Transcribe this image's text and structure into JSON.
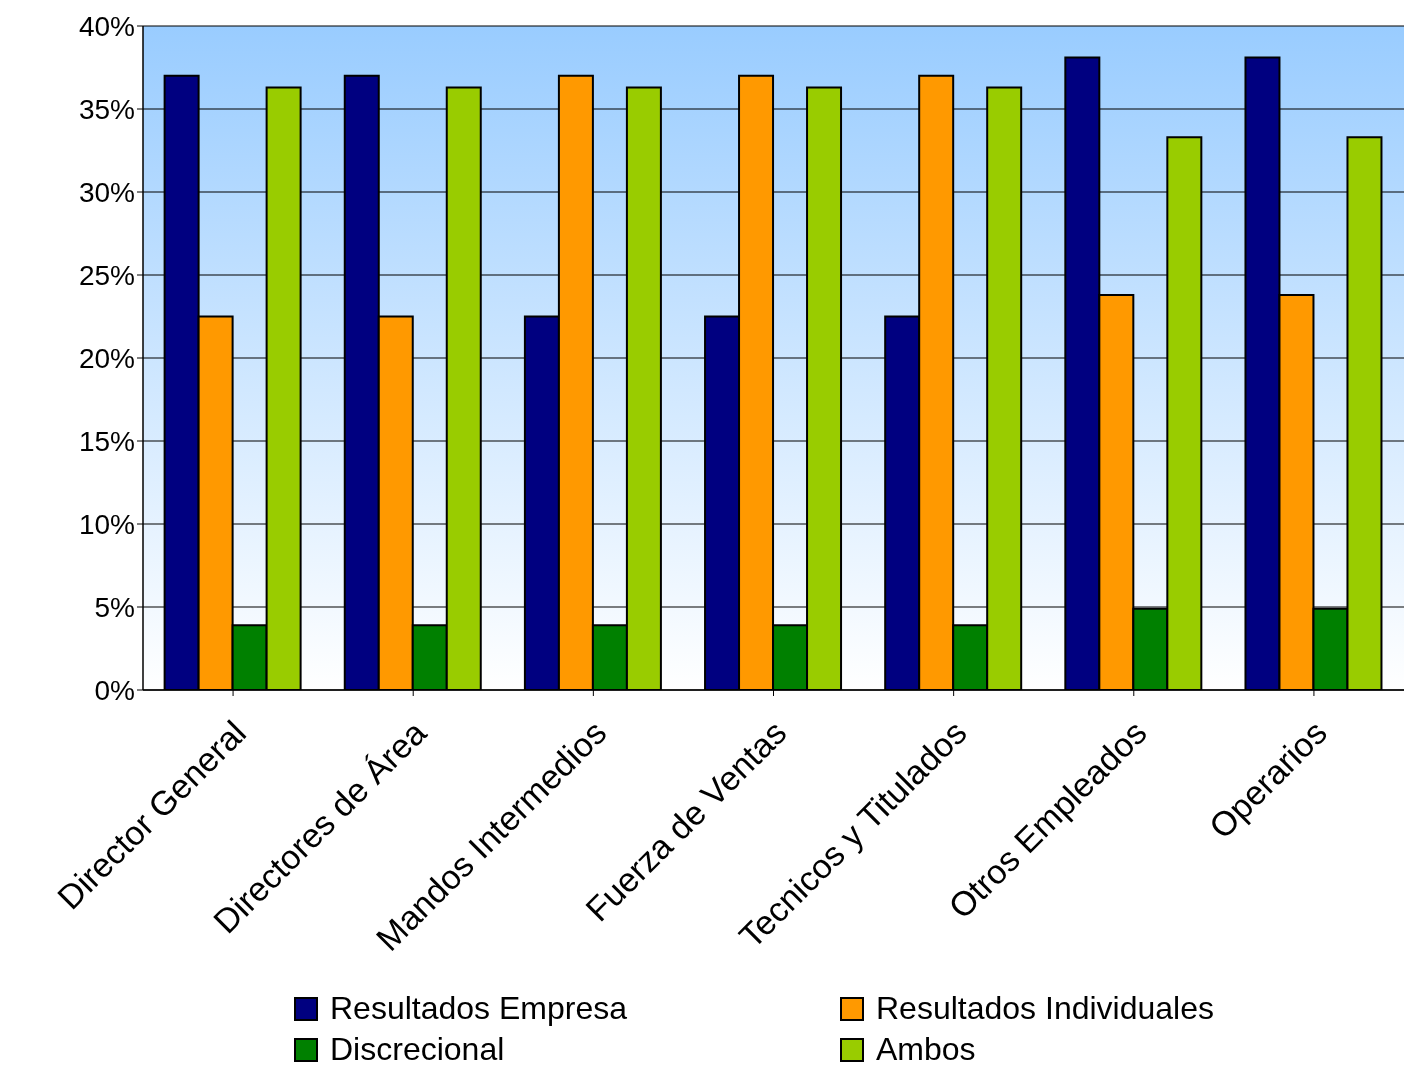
{
  "chart_data": {
    "type": "bar",
    "categories": [
      "Director General",
      "Directores de Área",
      "Mandos Intermedios",
      "Fuerza de Ventas",
      "Tecnicos y Titulados",
      "Otros Empleados",
      "Operarios"
    ],
    "series": [
      {
        "name": "Resultados Empresa",
        "color": "#000080",
        "values": [
          37.0,
          37.0,
          22.5,
          22.5,
          22.5,
          38.1,
          38.1
        ]
      },
      {
        "name": "Resultados Individuales",
        "color": "#ff9900",
        "values": [
          22.5,
          22.5,
          37.0,
          37.0,
          37.0,
          23.8,
          23.8
        ]
      },
      {
        "name": "Discrecional",
        "color": "#008000",
        "values": [
          3.9,
          3.9,
          3.9,
          3.9,
          3.9,
          4.9,
          4.9
        ]
      },
      {
        "name": "Ambos",
        "color": "#99cc00",
        "values": [
          36.3,
          36.3,
          36.3,
          36.3,
          36.3,
          33.3,
          33.3
        ]
      }
    ],
    "ylim": [
      0,
      40
    ],
    "yticks": [
      {
        "value": 0,
        "label": "0%"
      },
      {
        "value": 5,
        "label": "5%"
      },
      {
        "value": 10,
        "label": "10%"
      },
      {
        "value": 15,
        "label": "15%"
      },
      {
        "value": 20,
        "label": "20%"
      },
      {
        "value": 25,
        "label": "25%"
      },
      {
        "value": 30,
        "label": "30%"
      },
      {
        "value": 35,
        "label": "35%"
      },
      {
        "value": 40,
        "label": "40%"
      }
    ],
    "grid": "y",
    "legend": "bottom"
  }
}
